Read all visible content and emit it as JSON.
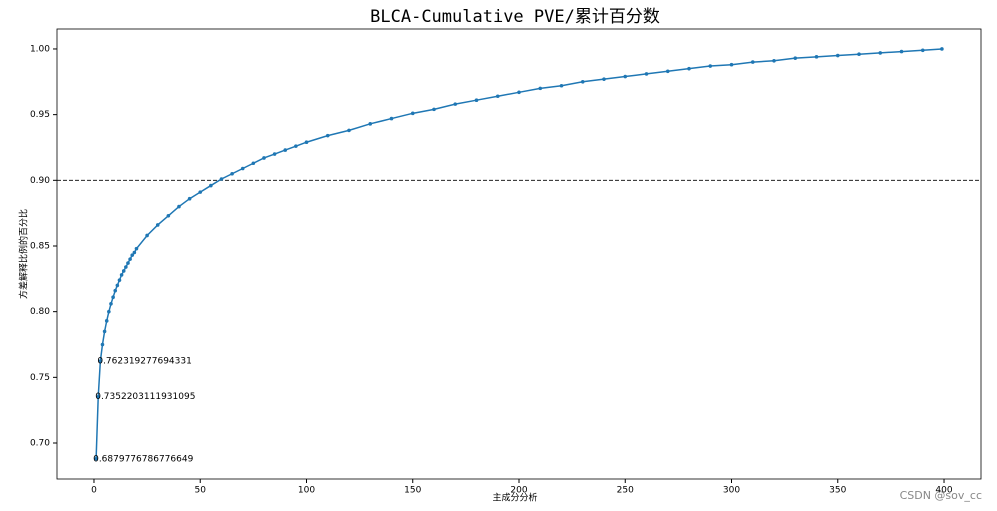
{
  "chart_data": {
    "type": "line",
    "title": "BLCA-Cumulative PVE/累计百分数",
    "x_label": "主成分分析",
    "y_label": "方差解释比例的百分比",
    "watermark": "CSDN @sov_cc",
    "x": [
      1,
      2,
      3,
      4,
      5,
      6,
      7,
      8,
      9,
      10,
      11,
      12,
      13,
      14,
      15,
      16,
      17,
      18,
      19,
      20,
      25,
      30,
      35,
      40,
      45,
      50,
      55,
      60,
      65,
      70,
      75,
      80,
      85,
      90,
      95,
      100,
      110,
      120,
      130,
      140,
      150,
      160,
      170,
      180,
      190,
      200,
      210,
      220,
      230,
      240,
      250,
      260,
      270,
      280,
      290,
      300,
      310,
      320,
      330,
      340,
      350,
      360,
      370,
      380,
      390,
      399
    ],
    "series": [
      {
        "color": "#1f77b4",
        "values": [
          0.6879776786776649,
          0.7352203111931095,
          0.762319277694331,
          0.775,
          0.785,
          0.793,
          0.8,
          0.806,
          0.811,
          0.816,
          0.82,
          0.824,
          0.828,
          0.831,
          0.834,
          0.837,
          0.84,
          0.843,
          0.845,
          0.848,
          0.858,
          0.866,
          0.873,
          0.88,
          0.886,
          0.891,
          0.896,
          0.901,
          0.905,
          0.909,
          0.913,
          0.917,
          0.92,
          0.923,
          0.926,
          0.929,
          0.934,
          0.938,
          0.943,
          0.947,
          0.951,
          0.954,
          0.958,
          0.961,
          0.964,
          0.967,
          0.97,
          0.972,
          0.975,
          0.977,
          0.979,
          0.981,
          0.983,
          0.985,
          0.987,
          0.988,
          0.99,
          0.991,
          0.993,
          0.994,
          0.995,
          0.996,
          0.997,
          0.998,
          0.999,
          1.0
        ],
        "value_labels": [
          "0.6879776786776649",
          "0.7352203111931095",
          "0.762319277694331",
          null,
          null,
          null,
          null,
          null,
          null,
          null,
          null,
          null,
          null,
          null,
          null,
          null,
          null,
          null,
          null,
          null,
          null,
          null,
          null,
          null,
          null,
          null,
          null,
          null,
          null,
          null,
          null,
          null,
          null,
          null,
          null,
          null,
          null,
          null,
          null,
          null,
          null,
          null,
          null,
          null,
          null,
          null,
          null,
          null,
          null,
          null,
          null,
          null,
          null,
          null,
          null,
          null,
          null,
          null,
          null,
          null,
          null,
          null,
          null,
          null,
          null,
          null
        ]
      }
    ],
    "reference_line": 0.9,
    "xlim": [
      -17.4,
      417.4
    ],
    "xticks": [
      0,
      50,
      100,
      150,
      200,
      250,
      300,
      350,
      400
    ],
    "ylim": [
      0.6726,
      1.0152
    ],
    "yticks": [
      {
        "value": 0.7,
        "label": "0.70"
      },
      {
        "value": 0.75,
        "label": "0.75"
      },
      {
        "value": 0.8,
        "label": "0.80"
      },
      {
        "value": 0.85,
        "label": "0.85"
      },
      {
        "value": 0.9,
        "label": "0.90"
      },
      {
        "value": 0.95,
        "label": "0.95"
      },
      {
        "value": 1.0,
        "label": "1.00"
      }
    ]
  }
}
